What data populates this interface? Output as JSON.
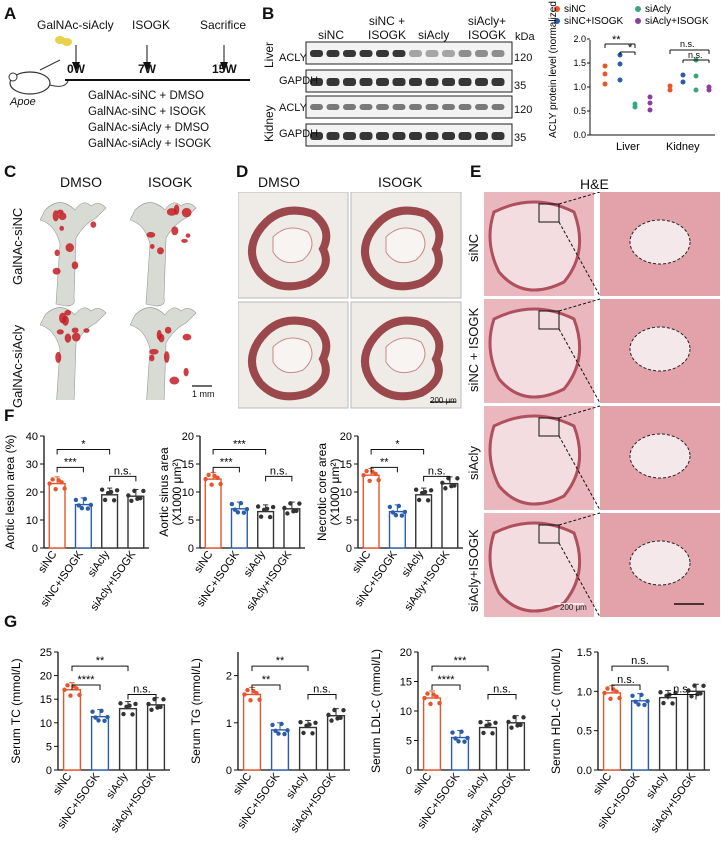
{
  "panel_labels": {
    "A": "A",
    "B": "B",
    "C": "C",
    "D": "D",
    "E": "E",
    "F": "F",
    "G": "G"
  },
  "panelA": {
    "drug1": "GalNAc-siAcly",
    "drug2": "ISOGK",
    "end": "Sacrifice",
    "t0": "0W",
    "t1": "7W",
    "t2": "15W",
    "mouse": "Apoe",
    "groups": [
      "GalNAc-siNC + DMSO",
      "GalNAc-siNC + ISOGK",
      "GalNAc-siAcly + DMSO",
      "GalNAc-siAcly + ISOGK"
    ]
  },
  "panelB": {
    "col_headers": [
      "siNC",
      "siNC + ISOGK",
      "siAcly",
      "siAcly+ ISOGK"
    ],
    "kda": "kDa",
    "tissues": [
      "Liver",
      "Kidney"
    ],
    "rows": [
      {
        "name": "ACLY",
        "mw": "120"
      },
      {
        "name": "GAPDH",
        "mw": "35"
      },
      {
        "name": "ACLY",
        "mw": "120"
      },
      {
        "name": "GAPDH",
        "mw": "35"
      }
    ],
    "legend": [
      "siNC",
      "siAcly",
      "siNC+ISOGK",
      "siAcly+ISOGK"
    ],
    "ylabel": "ACLY protein level (normalized to GAPDH)",
    "sig": [
      "**",
      "*",
      "n.s.",
      "n.s."
    ],
    "colors": [
      "#e8542c",
      "#3aa77a",
      "#2a5caa",
      "#8a3f9e"
    ]
  },
  "panelC": {
    "col1": "DMSO",
    "col2": "ISOGK",
    "row1": "GalNAc-siNC",
    "row2": "GalNAc-siAcly",
    "scale": "1 mm"
  },
  "panelD": {
    "col1": "DMSO",
    "col2": "ISOGK",
    "scale": "200 μm"
  },
  "panelE": {
    "title": "H&E",
    "rows": [
      "siNC",
      "siNC + ISOGK",
      "siAcly",
      "siAcly+ISOGK"
    ],
    "scale": "200 μm"
  },
  "chart_data": [
    {
      "type": "bar",
      "categories": [
        "siNC",
        "siNC+ISOGK",
        "siAcly",
        "siAcly+ISOGK"
      ],
      "values": [
        23,
        15.5,
        19,
        18.5
      ],
      "ylabel": "Aortic lesion area (%)",
      "ylim": [
        0,
        40
      ],
      "yticks": [
        "0",
        "10",
        "20",
        "30",
        "40"
      ],
      "sig": [
        "***",
        "*",
        "n.s."
      ]
    },
    {
      "type": "bar",
      "categories": [
        "siNC",
        "siNC+ISOGK",
        "siAcly",
        "siAcly+ISOGK"
      ],
      "values": [
        12.3,
        7,
        6.5,
        7
      ],
      "ylabel": "Aortic sinus area",
      "yunit": "(X1000 μm²)",
      "ylim": [
        0,
        20
      ],
      "yticks": [
        "0",
        "5",
        "10",
        "15",
        "20"
      ],
      "sig": [
        "***",
        "***",
        "n.s."
      ]
    },
    {
      "type": "bar",
      "categories": [
        "siNC",
        "siNC+ISOGK",
        "siAcly",
        "siAcly+ISOGK"
      ],
      "values": [
        13,
        6.5,
        9.5,
        11.5
      ],
      "ylabel": "Necrotic core area",
      "yunit": "(X1000 μm²)",
      "ylim": [
        0,
        20
      ],
      "yticks": [
        "0",
        "5",
        "10",
        "15",
        "20"
      ],
      "sig": [
        "**",
        "*",
        "n.s."
      ]
    },
    {
      "type": "bar",
      "categories": [
        "siNC",
        "siNC+ISOGK",
        "siAcly",
        "siAcly+ISOGK"
      ],
      "values": [
        17,
        11.3,
        13,
        13.8
      ],
      "ylabel": "Serum TC (mmol/L)",
      "ylim": [
        0,
        25
      ],
      "yticks": [
        "0",
        "5",
        "10",
        "15",
        "20",
        "25"
      ],
      "sig": [
        "****",
        "**",
        "n.s."
      ]
    },
    {
      "type": "bar",
      "categories": [
        "siNC",
        "siNC+ISOGK",
        "siAcly",
        "siAcly+ISOGK"
      ],
      "values": [
        1.6,
        0.85,
        0.9,
        1.15
      ],
      "ylabel": "Serum TG (mmol/L)",
      "ylim": [
        0,
        2.5
      ],
      "yticks": [
        "0",
        "1",
        "2"
      ],
      "sig": [
        "**",
        "**",
        "n.s."
      ]
    },
    {
      "type": "bar",
      "categories": [
        "siNC",
        "siNC+ISOGK",
        "siAcly",
        "siAcly+ISOGK"
      ],
      "values": [
        12.2,
        5.5,
        7.2,
        8
      ],
      "ylabel": "Serum LDL-C (mmol/L)",
      "ylim": [
        0,
        20
      ],
      "yticks": [
        "0",
        "5",
        "10",
        "15",
        "20"
      ],
      "sig": [
        "****",
        "***",
        "n.s."
      ]
    },
    {
      "type": "bar",
      "categories": [
        "siNC",
        "siNC+ISOGK",
        "siAcly",
        "siAcly+ISOGK"
      ],
      "values": [
        0.98,
        0.88,
        0.92,
        1.0
      ],
      "ylabel": "Serum HDL-C (mmol/L)",
      "ylim": [
        0,
        1.5
      ],
      "yticks": [
        "0.0",
        "0.5",
        "1.0",
        "1.5"
      ],
      "sig": [
        "n.s.",
        "n.s.",
        "n.s."
      ]
    }
  ],
  "colors": {
    "siNC": "#e8542c",
    "siNC_ISOGK": "#2a5caa",
    "siAcly": "#333333",
    "siAcly_ISOGK": "#333333",
    "stain": "#b5222c"
  }
}
